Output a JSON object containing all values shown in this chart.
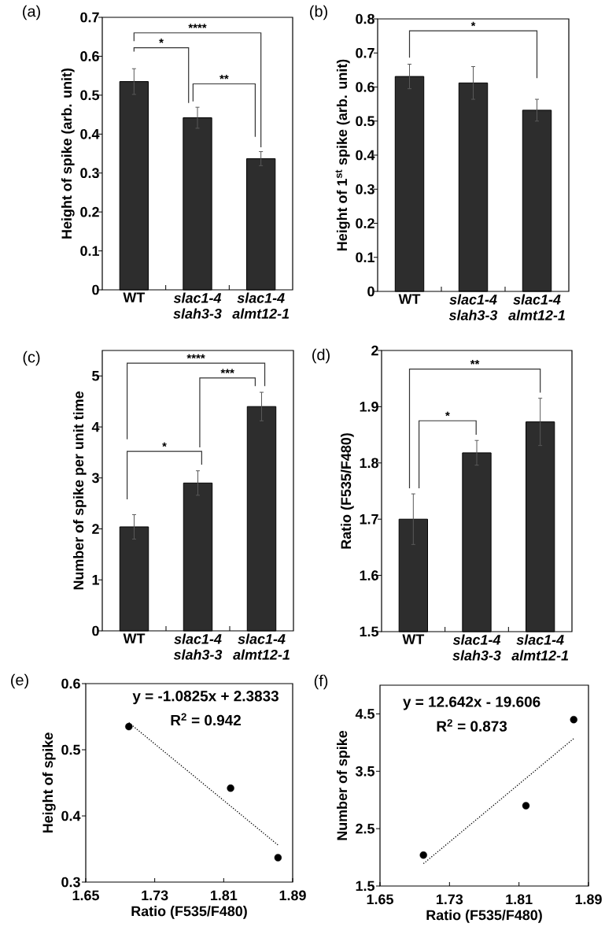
{
  "chart_data": [
    {
      "type": "bar",
      "title": "(a)",
      "ylabel": "Height of spike (arb. unit)",
      "categories": [
        "WT",
        "*slac1-4 slah3-3*",
        "*slac1-4 almt12-1*"
      ],
      "values": [
        0.535,
        0.442,
        0.337
      ],
      "errors": [
        0.033,
        0.027,
        0.018
      ],
      "color": "#2d2d2d",
      "ylim": [
        0,
        0.7
      ],
      "yticks": [
        0,
        0.1,
        0.2,
        0.3,
        0.4,
        0.5,
        0.6,
        0.7
      ],
      "annotations": [
        "*",
        "****",
        "**"
      ]
    },
    {
      "type": "bar",
      "title": "(b)",
      "ylabel": "Height of 1$^{st}$ spike (arb. unit)",
      "categories": [
        "WT",
        "*slac1-4 slah3-3*",
        "*slac1-4 almt12-1*"
      ],
      "values": [
        0.631,
        0.612,
        0.532
      ],
      "errors": [
        0.036,
        0.048,
        0.032
      ],
      "color": "#2d2d2d",
      "ylim": [
        0,
        0.8
      ],
      "yticks": [
        0,
        0.1,
        0.2,
        0.3,
        0.4,
        0.5,
        0.6,
        0.7,
        0.8
      ],
      "annotations": [
        "*"
      ]
    },
    {
      "type": "bar",
      "title": "(c)",
      "ylabel": "Number of spike per unit time",
      "categories": [
        "WT",
        "*slac1-4 slah3-3*",
        "*slac1-4 almt12-1*"
      ],
      "values": [
        2.04,
        2.9,
        4.4
      ],
      "errors": [
        0.24,
        0.24,
        0.28
      ],
      "color": "#2d2d2d",
      "ylim": [
        0,
        5.5
      ],
      "yticks": [
        0,
        1,
        2,
        3,
        4,
        5
      ],
      "annotations": [
        "****",
        "***",
        "*"
      ]
    },
    {
      "type": "bar",
      "title": "(d)",
      "ylabel": "Ratio (F535/F480)",
      "categories": [
        "WT",
        "*slac1-4 slah3-3*",
        "*slac1-4 almt12-1*"
      ],
      "values": [
        1.7,
        1.818,
        1.873
      ],
      "errors": [
        0.045,
        0.022,
        0.042
      ],
      "color": "#2d2d2d",
      "ylim": [
        1.5,
        2
      ],
      "yticks": [
        1.5,
        1.6,
        1.7,
        1.8,
        1.9,
        2
      ],
      "annotations": [
        "**",
        "*"
      ]
    },
    {
      "type": "scatter",
      "title": "(e)",
      "xlabel": "Ratio (F535/F480)",
      "ylabel": "Height of spike",
      "xlim": [
        1.65,
        1.89
      ],
      "xticks": [
        1.65,
        1.73,
        1.81,
        1.89
      ],
      "ylim": [
        0.3,
        0.6
      ],
      "yticks": [
        0.3,
        0.4,
        0.5,
        0.6
      ],
      "series": [
        {
          "type": "scatter",
          "x": [
            1.7,
            1.818,
            1.873
          ],
          "values": [
            0.535,
            0.442,
            0.337
          ],
          "color": "#000000",
          "marker": "circle"
        },
        {
          "type": "line",
          "x": [
            1.7,
            1.873
          ],
          "values": [
            0.541,
            0.356
          ],
          "color": "#000000",
          "line_style": "dotted",
          "marker": "none"
        }
      ],
      "annotations": [
        "y = -1.0825x + 2.3833",
        "R$^{2}$ = 0.942"
      ]
    },
    {
      "type": "scatter",
      "title": "(f)",
      "xlabel": "Ratio (F535/F480)",
      "ylabel": "Number of spike",
      "xlim": [
        1.65,
        1.89
      ],
      "xticks": [
        1.65,
        1.73,
        1.81,
        1.89
      ],
      "ylim": [
        1.5,
        5
      ],
      "yticks": [
        1.5,
        2.5,
        3.5,
        4.5
      ],
      "series": [
        {
          "type": "scatter",
          "x": [
            1.7,
            1.818,
            1.873
          ],
          "values": [
            2.04,
            2.9,
            4.4
          ],
          "color": "#000000",
          "marker": "circle"
        },
        {
          "type": "line",
          "x": [
            1.7,
            1.873
          ],
          "values": [
            1.89,
            4.07
          ],
          "color": "#000000",
          "line_style": "dotted",
          "marker": "none"
        }
      ],
      "annotations": [
        "y = 12.642x - 19.606",
        "R$^{2}$ = 0.873"
      ]
    }
  ]
}
